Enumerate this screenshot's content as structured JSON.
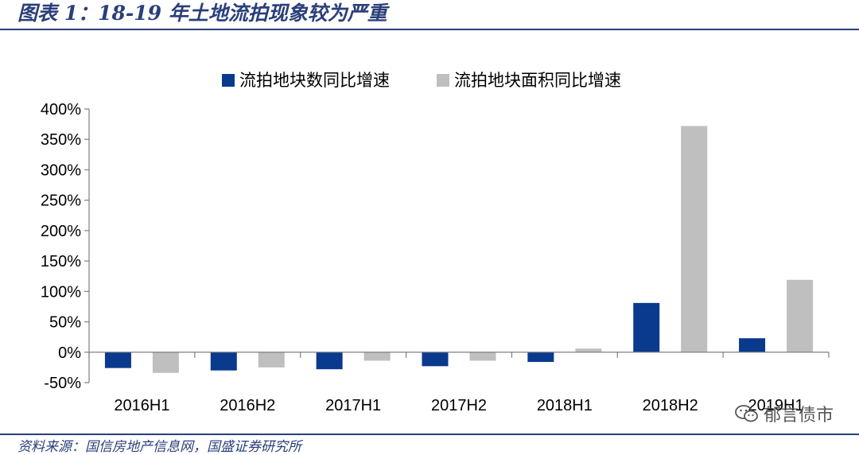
{
  "header": {
    "title": "图表 1：18-19 年土地流拍现象较为严重"
  },
  "footer": {
    "source": "资料来源：国信房地产信息网，国盛证券研究所"
  },
  "watermark": {
    "text": "郁言债市",
    "icon": "wechat-icon"
  },
  "chart_data": {
    "type": "bar",
    "categories": [
      "2016H1",
      "2016H2",
      "2017H1",
      "2017H2",
      "2018H1",
      "2018H2",
      "2019H1"
    ],
    "series": [
      {
        "name": "流拍地块数同比增速",
        "color": "#0a3a8e",
        "values": [
          -26,
          -30,
          -28,
          -23,
          -16,
          81,
          23
        ]
      },
      {
        "name": "流拍地块面积同比增速",
        "color": "#bfbfbf",
        "values": [
          -34,
          -25,
          -14,
          -14,
          6,
          372,
          119
        ]
      }
    ],
    "ylim": [
      -50,
      400
    ],
    "yticks": [
      {
        "value": 400,
        "label": "400%"
      },
      {
        "value": 350,
        "label": "350%"
      },
      {
        "value": 300,
        "label": "300%"
      },
      {
        "value": 250,
        "label": "250%"
      },
      {
        "value": 200,
        "label": "200%"
      },
      {
        "value": 150,
        "label": "150%"
      },
      {
        "value": 100,
        "label": "100%"
      },
      {
        "value": 50,
        "label": "50%"
      },
      {
        "value": 0,
        "label": "0%"
      },
      {
        "value": -50,
        "label": "-50%"
      }
    ],
    "legend_position": "top",
    "grid": false
  }
}
